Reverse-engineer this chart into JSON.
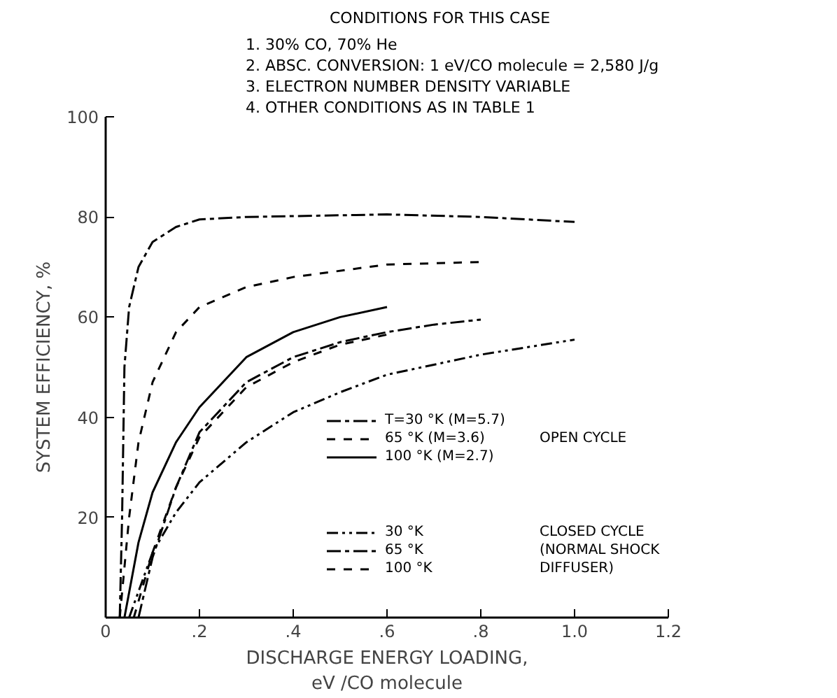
{
  "chart_data": {
    "type": "line",
    "title": "CONDITIONS FOR THIS CASE",
    "annotations": [
      "1. 30% CO, 70% He",
      "2. ABSC. CONVERSION: 1 eV/CO molecule = 2,580 J/g",
      "3. ELECTRON NUMBER DENSITY VARIABLE",
      "4. OTHER CONDITIONS AS IN TABLE 1",
      "OPEN CYCLE",
      "CLOSED CYCLE\n(NORMAL SHOCK\nDIFFUSER)"
    ],
    "xlabel": "DISCHARGE ENERGY LOADING,\neV /CO molecule",
    "ylabel": "SYSTEM EFFICIENCY, %",
    "xlim": [
      0,
      1.2
    ],
    "ylim": [
      0,
      100
    ],
    "xticks": [
      0,
      {
        "value": 0.2,
        "label": ".2"
      },
      {
        "value": 0.4,
        "label": ".4"
      },
      {
        "value": 0.6,
        "label": ".6"
      },
      {
        "value": 0.8,
        "label": ".8"
      },
      {
        "value": 1.0,
        "label": "1.0"
      },
      {
        "value": 1.2,
        "label": "1.2"
      }
    ],
    "yticks": [
      {
        "value": 0,
        "label": null
      },
      20,
      40,
      60,
      80,
      100
    ],
    "grid": false,
    "legend": "bottom right",
    "marker": "none",
    "series": [
      {
        "name": "T=30 °K (M=5.7)",
        "color": "#000000",
        "line_style": "dashdot",
        "x": [
          0.03,
          0.035,
          0.04,
          0.05,
          0.07,
          0.1,
          0.15,
          0.2,
          0.3,
          0.6,
          0.8,
          1.0
        ],
        "values": [
          0,
          20,
          50,
          62,
          70,
          75,
          78,
          79.5,
          80,
          80.5,
          80,
          79
        ]
      },
      {
        "name": "65 °K (M=3.6)",
        "color": "#000000",
        "line_style": "dashed",
        "x": [
          0.03,
          0.05,
          0.07,
          0.1,
          0.15,
          0.2,
          0.3,
          0.4,
          0.6,
          0.8
        ],
        "values": [
          0,
          20,
          35,
          47,
          57,
          62,
          66,
          68,
          70.5,
          71
        ]
      },
      {
        "name": "100 °K (M=2.7)",
        "color": "#000000",
        "line_style": "solid",
        "x": [
          0.04,
          0.07,
          0.1,
          0.15,
          0.2,
          0.3,
          0.4,
          0.5,
          0.6
        ],
        "values": [
          0,
          15,
          25,
          35,
          42,
          52,
          57,
          60,
          62
        ]
      },
      {
        "name": "30 °K",
        "color": "#000000",
        "line_style": "dotdash",
        "x": [
          0.05,
          0.1,
          0.15,
          0.2,
          0.3,
          0.4,
          0.5,
          0.6,
          0.8,
          1.0
        ],
        "values": [
          0,
          13,
          21,
          27,
          35,
          41,
          45,
          48.5,
          52.5,
          55.5
        ]
      },
      {
        "name": "65 °K",
        "color": "#000000",
        "line_style": "dashdot",
        "x": [
          0.07,
          0.1,
          0.15,
          0.2,
          0.3,
          0.4,
          0.5,
          0.6,
          0.7,
          0.8
        ],
        "values": [
          0,
          12,
          26,
          37,
          47,
          52,
          55,
          57,
          58.5,
          59.5
        ]
      },
      {
        "name": "100 °K",
        "color": "#000000",
        "line_style": "dashed",
        "x": [
          0.06,
          0.1,
          0.15,
          0.2,
          0.3,
          0.4,
          0.5,
          0.6
        ],
        "values": [
          0,
          13,
          26,
          36,
          46,
          51,
          54.5,
          56.5
        ]
      }
    ]
  }
}
